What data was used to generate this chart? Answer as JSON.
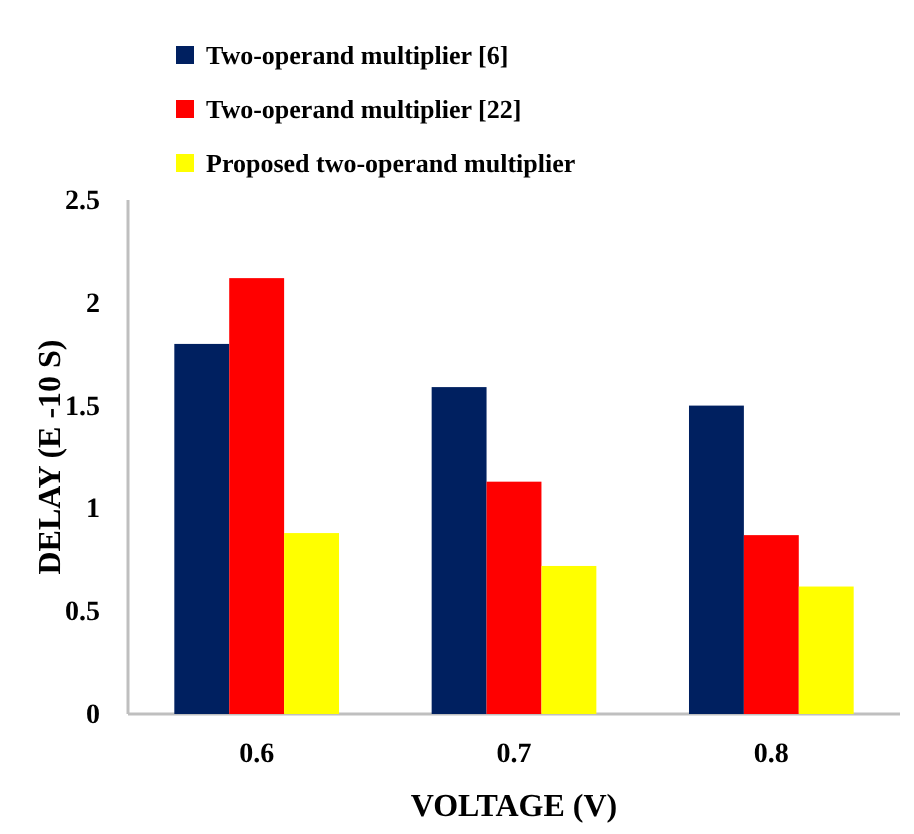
{
  "chart_data": {
    "type": "bar",
    "xlabel": "VOLTAGE (V)",
    "ylabel": "DELAY (E -10 S)",
    "categories": [
      "0.6",
      "0.7",
      "0.8"
    ],
    "series": [
      {
        "name": "Two-operand multiplier [6]",
        "color": "#002060",
        "values": [
          1.8,
          1.59,
          1.5
        ]
      },
      {
        "name": "Two-operand multiplier [22]",
        "color": "#ff0000",
        "values": [
          2.12,
          1.13,
          0.87
        ]
      },
      {
        "name": "Proposed two-operand multiplier",
        "color": "#ffff00",
        "values": [
          0.88,
          0.72,
          0.62
        ]
      }
    ],
    "ylim": [
      0,
      2.5
    ],
    "yticks": [
      0,
      {
        "value": 0.5,
        "label": "0.5"
      },
      1,
      {
        "value": 1.5,
        "label": "1.5"
      },
      2,
      {
        "value": 2.5,
        "label": "2.5"
      }
    ],
    "grid": false,
    "legend": "top"
  }
}
